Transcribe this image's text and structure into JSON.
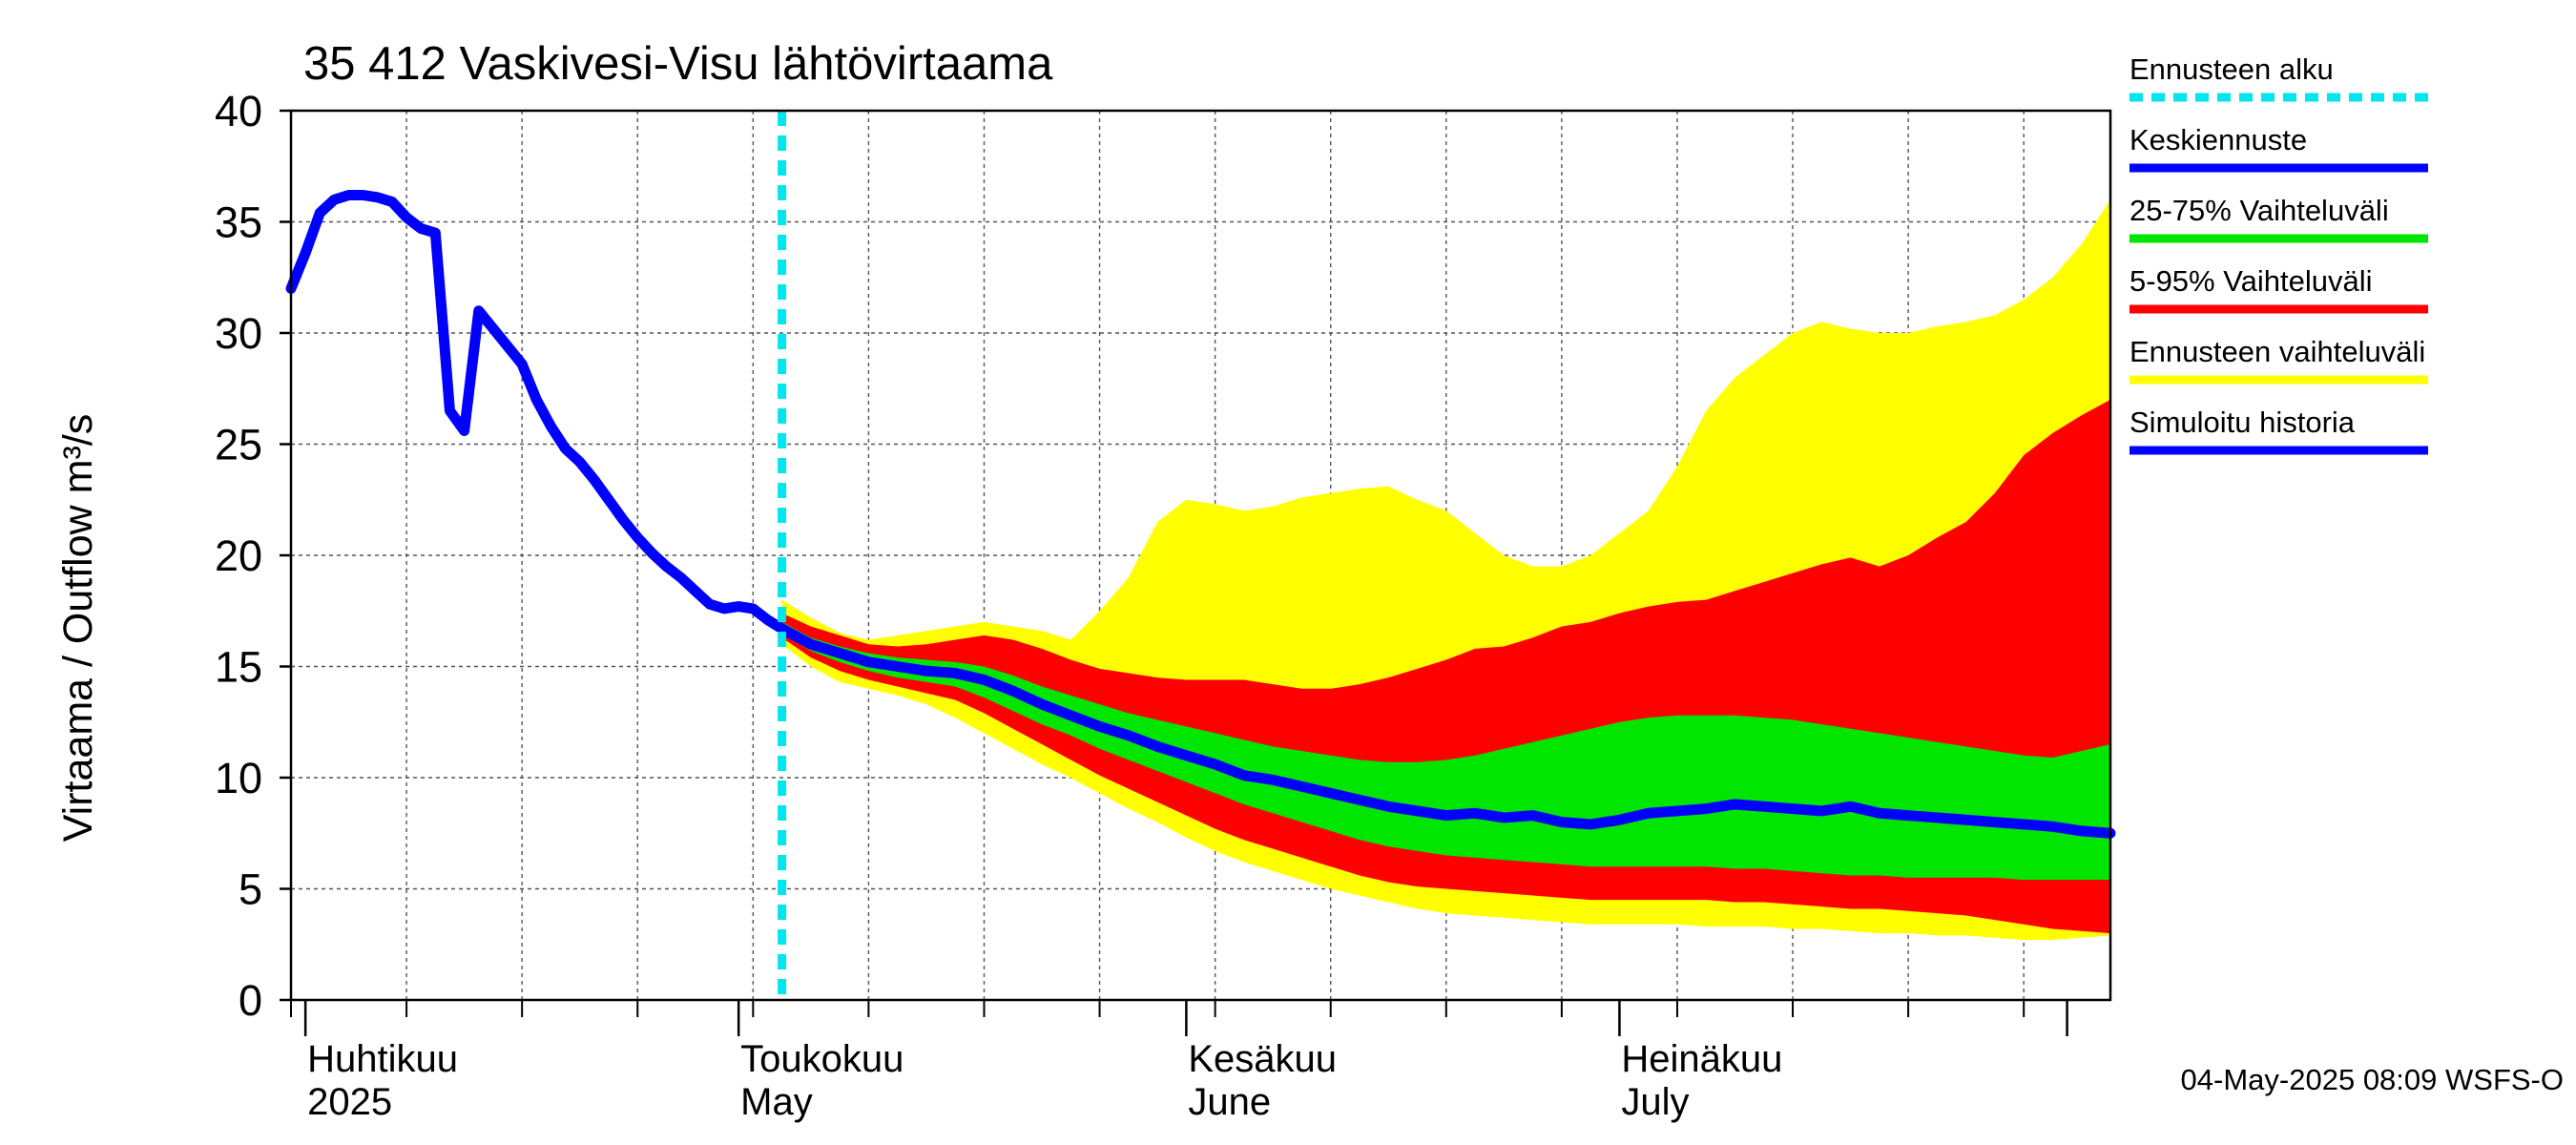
{
  "chart_data": {
    "type": "area",
    "title": "35 412 Vaskivesi-Visu lähtövirtaama",
    "ylabel": "Virtaama / Outflow    m³/s",
    "ylim": [
      0,
      40
    ],
    "yticks": [
      0,
      5,
      10,
      15,
      20,
      25,
      30,
      35,
      40
    ],
    "x_start": "2025-03-31",
    "x_end": "2025-08-04",
    "forecast_start": "2025-05-04",
    "grid": true,
    "legend_position": "right",
    "month_labels": [
      {
        "date": "2025-04-01",
        "line1": "Huhtikuu",
        "line2": "2025"
      },
      {
        "date": "2025-05-01",
        "line1": "Toukokuu",
        "line2": "May"
      },
      {
        "date": "2025-06-01",
        "line1": "Kesäkuu",
        "line2": "June"
      },
      {
        "date": "2025-07-01",
        "line1": "Heinäkuu",
        "line2": "July"
      }
    ],
    "legend": [
      {
        "key": "forecast_start",
        "label": "Ennusteen alku",
        "color": "#00e5ee",
        "style": "dashed"
      },
      {
        "key": "mean",
        "label": "Keskiennuste",
        "color": "#0000ff",
        "style": "solid"
      },
      {
        "key": "p25_75",
        "label": "25-75% Vaihteluväli",
        "color": "#00e600",
        "style": "solid"
      },
      {
        "key": "p5_95",
        "label": "5-95% Vaihteluväli",
        "color": "#ff0000",
        "style": "solid"
      },
      {
        "key": "range",
        "label": "Ennusteen vaihteluväli",
        "color": "#ffff00",
        "style": "solid"
      },
      {
        "key": "history",
        "label": "Simuloitu historia",
        "color": "#0000ff",
        "style": "solid"
      }
    ],
    "footer": "04-May-2025 08:09 WSFS-O",
    "history": {
      "x": [
        "2025-03-31",
        "2025-04-01",
        "2025-04-02",
        "2025-04-03",
        "2025-04-04",
        "2025-04-05",
        "2025-04-06",
        "2025-04-07",
        "2025-04-08",
        "2025-04-09",
        "2025-04-10",
        "2025-04-11",
        "2025-04-12",
        "2025-04-13",
        "2025-04-14",
        "2025-04-15",
        "2025-04-16",
        "2025-04-17",
        "2025-04-18",
        "2025-04-19",
        "2025-04-20",
        "2025-04-21",
        "2025-04-22",
        "2025-04-23",
        "2025-04-24",
        "2025-04-25",
        "2025-04-26",
        "2025-04-27",
        "2025-04-28",
        "2025-04-29",
        "2025-04-30",
        "2025-05-01",
        "2025-05-02",
        "2025-05-03",
        "2025-05-04"
      ],
      "y": [
        32.0,
        33.6,
        35.4,
        36.0,
        36.2,
        36.2,
        36.1,
        35.9,
        35.2,
        34.7,
        34.5,
        26.5,
        25.6,
        31.0,
        30.2,
        29.4,
        28.6,
        27.0,
        25.8,
        24.8,
        24.2,
        23.4,
        22.5,
        21.6,
        20.8,
        20.1,
        19.5,
        19.0,
        18.4,
        17.8,
        17.6,
        17.7,
        17.6,
        17.1,
        16.7
      ]
    },
    "forecast": {
      "x": [
        "2025-05-04",
        "2025-05-06",
        "2025-05-08",
        "2025-05-10",
        "2025-05-12",
        "2025-05-14",
        "2025-05-16",
        "2025-05-18",
        "2025-05-20",
        "2025-05-22",
        "2025-05-24",
        "2025-05-26",
        "2025-05-28",
        "2025-05-30",
        "2025-06-01",
        "2025-06-03",
        "2025-06-05",
        "2025-06-07",
        "2025-06-09",
        "2025-06-11",
        "2025-06-13",
        "2025-06-15",
        "2025-06-17",
        "2025-06-19",
        "2025-06-21",
        "2025-06-23",
        "2025-06-25",
        "2025-06-27",
        "2025-06-29",
        "2025-07-01",
        "2025-07-03",
        "2025-07-05",
        "2025-07-07",
        "2025-07-09",
        "2025-07-11",
        "2025-07-13",
        "2025-07-15",
        "2025-07-17",
        "2025-07-19",
        "2025-07-21",
        "2025-07-23",
        "2025-07-25",
        "2025-07-27",
        "2025-07-29",
        "2025-07-31",
        "2025-08-02",
        "2025-08-04"
      ],
      "mean": [
        16.7,
        16.0,
        15.6,
        15.2,
        15.0,
        14.8,
        14.7,
        14.4,
        13.9,
        13.3,
        12.8,
        12.3,
        11.9,
        11.4,
        11.0,
        10.6,
        10.1,
        9.9,
        9.6,
        9.3,
        9.0,
        8.7,
        8.5,
        8.3,
        8.4,
        8.2,
        8.3,
        8.0,
        7.9,
        8.1,
        8.4,
        8.5,
        8.6,
        8.8,
        8.7,
        8.6,
        8.5,
        8.7,
        8.4,
        8.3,
        8.2,
        8.1,
        8.0,
        7.9,
        7.8,
        7.6,
        7.5
      ],
      "p25": [
        16.5,
        15.7,
        15.2,
        14.8,
        14.5,
        14.3,
        14.1,
        13.6,
        13.0,
        12.4,
        11.9,
        11.3,
        10.8,
        10.3,
        9.8,
        9.3,
        8.8,
        8.4,
        8.0,
        7.6,
        7.2,
        6.9,
        6.7,
        6.5,
        6.4,
        6.3,
        6.2,
        6.1,
        6.0,
        6.0,
        6.0,
        6.0,
        6.0,
        5.9,
        5.9,
        5.8,
        5.7,
        5.6,
        5.6,
        5.5,
        5.5,
        5.5,
        5.5,
        5.4,
        5.4,
        5.4,
        5.4
      ],
      "p75": [
        17.0,
        16.3,
        15.9,
        15.6,
        15.4,
        15.3,
        15.2,
        15.0,
        14.6,
        14.1,
        13.7,
        13.3,
        12.9,
        12.6,
        12.3,
        12.0,
        11.7,
        11.4,
        11.2,
        11.0,
        10.8,
        10.7,
        10.7,
        10.8,
        11.0,
        11.3,
        11.6,
        11.9,
        12.2,
        12.5,
        12.7,
        12.8,
        12.8,
        12.8,
        12.7,
        12.6,
        12.4,
        12.2,
        12.0,
        11.8,
        11.6,
        11.4,
        11.2,
        11.0,
        10.9,
        11.2,
        11.5
      ],
      "p5": [
        16.3,
        15.4,
        14.8,
        14.4,
        14.1,
        13.8,
        13.5,
        12.9,
        12.2,
        11.5,
        10.8,
        10.1,
        9.5,
        8.9,
        8.3,
        7.7,
        7.2,
        6.8,
        6.4,
        6.0,
        5.6,
        5.3,
        5.1,
        5.0,
        4.9,
        4.8,
        4.7,
        4.6,
        4.5,
        4.5,
        4.5,
        4.5,
        4.5,
        4.4,
        4.4,
        4.3,
        4.2,
        4.1,
        4.1,
        4.0,
        3.9,
        3.8,
        3.6,
        3.4,
        3.2,
        3.1,
        3.0
      ],
      "p95": [
        17.4,
        16.8,
        16.4,
        16.0,
        15.9,
        16.0,
        16.2,
        16.4,
        16.2,
        15.8,
        15.3,
        14.9,
        14.7,
        14.5,
        14.4,
        14.4,
        14.4,
        14.2,
        14.0,
        14.0,
        14.2,
        14.5,
        14.9,
        15.3,
        15.8,
        15.9,
        16.3,
        16.8,
        17.0,
        17.4,
        17.7,
        17.9,
        18.0,
        18.4,
        18.8,
        19.2,
        19.6,
        19.9,
        19.5,
        20.0,
        20.8,
        21.5,
        22.8,
        24.5,
        25.5,
        26.3,
        27.0
      ],
      "min": [
        16.0,
        15.0,
        14.3,
        14.0,
        13.7,
        13.3,
        12.7,
        12.0,
        11.3,
        10.6,
        10.0,
        9.3,
        8.6,
        8.0,
        7.3,
        6.7,
        6.2,
        5.8,
        5.4,
        5.0,
        4.7,
        4.4,
        4.1,
        3.9,
        3.8,
        3.7,
        3.6,
        3.5,
        3.4,
        3.4,
        3.4,
        3.4,
        3.3,
        3.3,
        3.3,
        3.2,
        3.2,
        3.1,
        3.0,
        3.0,
        2.9,
        2.9,
        2.8,
        2.7,
        2.7,
        2.8,
        2.9
      ],
      "max": [
        18.0,
        17.2,
        16.5,
        16.2,
        16.4,
        16.6,
        16.8,
        17.0,
        16.8,
        16.6,
        16.2,
        17.5,
        19.0,
        21.5,
        22.5,
        22.3,
        22.0,
        22.2,
        22.6,
        22.8,
        23.0,
        23.1,
        22.5,
        22.0,
        21.0,
        20.0,
        19.5,
        19.5,
        20.0,
        21.0,
        22.0,
        24.0,
        26.5,
        28.0,
        29.0,
        30.0,
        30.5,
        30.2,
        30.0,
        30.0,
        30.3,
        30.5,
        30.8,
        31.5,
        32.5,
        34.0,
        36.0
      ]
    }
  }
}
